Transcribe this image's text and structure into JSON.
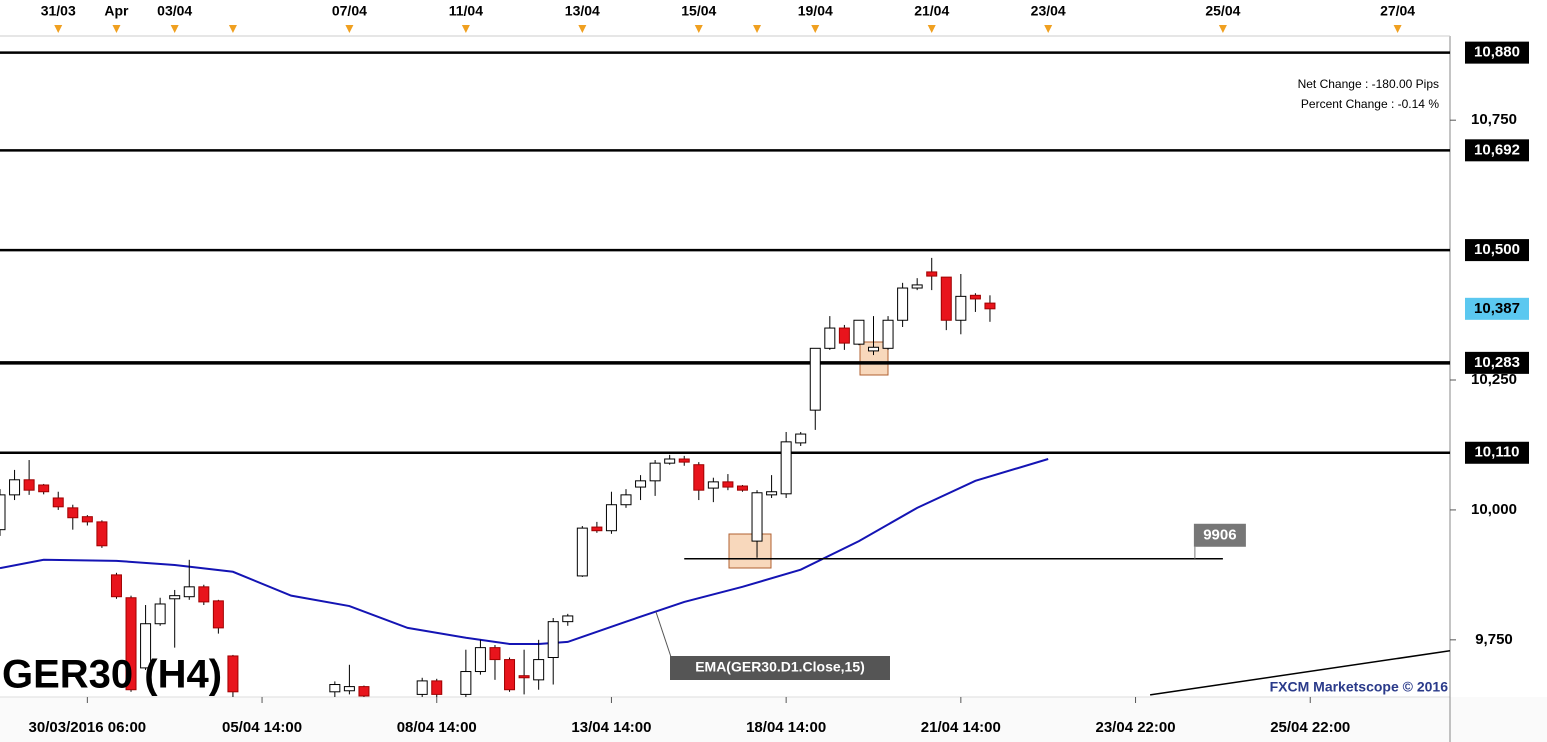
{
  "chart_data": {
    "type": "candlestick",
    "title": "GER30 (H4)",
    "annotations": {
      "net_change": "Net Change : -180.00 Pips",
      "percent_change": "Percent Change : -0.14 %",
      "ema_label": "EMA(GER30.D1.Close,15)",
      "watermark": "FXCM Marketscope © 2016"
    },
    "xlim": [
      0,
      99.6
    ],
    "ylim": [
      9640,
      10912
    ],
    "yticks": [
      {
        "value": 9750,
        "label": "9,750"
      },
      {
        "value": 10000,
        "label": "10,000"
      },
      {
        "value": 10250,
        "label": "10,250"
      },
      {
        "value": 10750,
        "label": "10,750"
      }
    ],
    "xticks": [
      {
        "value": 6,
        "label": "30/03/2016 06:00"
      },
      {
        "value": 18,
        "label": "05/04 14:00"
      },
      {
        "value": 30,
        "label": "08/04 14:00"
      },
      {
        "value": 42,
        "label": "13/04 14:00"
      },
      {
        "value": 54,
        "label": "18/04 14:00"
      },
      {
        "value": 66,
        "label": "21/04 14:00"
      },
      {
        "value": 78,
        "label": "23/04 22:00"
      },
      {
        "value": 90,
        "label": "25/04 22:00"
      }
    ],
    "top_ticks": [
      {
        "value": 4,
        "label": "31/03"
      },
      {
        "value": 8,
        "label": "Apr"
      },
      {
        "value": 12,
        "label": "03/04"
      },
      {
        "value": 16,
        "label": null
      },
      {
        "value": 24,
        "label": "07/04"
      },
      {
        "value": 32,
        "label": "11/04"
      },
      {
        "value": 40,
        "label": "13/04"
      },
      {
        "value": 48,
        "label": "15/04"
      },
      {
        "value": 52,
        "label": null
      },
      {
        "value": 56,
        "label": "19/04"
      },
      {
        "value": 64,
        "label": "21/04"
      },
      {
        "value": 72,
        "label": "23/04"
      },
      {
        "value": 84,
        "label": "25/04"
      },
      {
        "value": 96,
        "label": "27/04"
      }
    ],
    "levels": [
      {
        "value": 10880,
        "label": "10,880"
      },
      {
        "value": 10692,
        "label": "10,692"
      },
      {
        "value": 10500,
        "label": "10,500"
      },
      {
        "value": 10283,
        "label": "10,283"
      },
      {
        "value": 10110,
        "label": "10,110"
      }
    ],
    "last_price": {
      "value": 10387,
      "label": "10,387",
      "color": "#5bc8f0"
    },
    "up_color": "#ffffff",
    "down_color": "#e8141c",
    "candles": {
      "x": [
        0,
        1,
        2,
        3,
        4,
        5,
        6,
        7,
        8,
        9,
        10,
        11,
        12,
        13,
        14,
        15,
        16,
        23,
        24,
        25,
        29,
        30,
        32,
        33,
        34,
        35,
        36,
        37,
        38,
        39,
        40,
        41,
        42,
        43,
        44,
        45,
        46,
        47,
        48,
        49,
        50,
        51,
        52,
        53,
        54,
        55,
        56,
        57,
        58,
        59,
        60,
        61,
        62,
        63,
        64,
        65,
        66,
        67,
        68
      ],
      "open": [
        9962,
        10029,
        10058,
        10048,
        10023,
        10004,
        9987,
        9977,
        9875,
        9831,
        9696,
        9781,
        9829,
        9833,
        9852,
        9825,
        9719,
        9650,
        9652,
        9660,
        9645,
        9671,
        9645,
        9689,
        9735,
        9712,
        9681,
        9673,
        9716,
        9785,
        9873,
        9967,
        9960,
        10010,
        10044,
        10056,
        10090,
        10098,
        10087,
        10042,
        10054,
        10046,
        9940,
        10029,
        10031,
        10129,
        10192,
        10311,
        10350,
        10319,
        10306,
        10311,
        10365,
        10427,
        10458,
        10448,
        10365,
        10413,
        10398
      ],
      "high": [
        10040,
        10077,
        10096,
        10050,
        10035,
        10010,
        9990,
        9980,
        9879,
        9835,
        9817,
        9831,
        9846,
        9904,
        9856,
        9827,
        9721,
        9670,
        9702,
        9662,
        9677,
        9675,
        9731,
        9750,
        9740,
        9716,
        9731,
        9750,
        9792,
        9800,
        9969,
        9977,
        10035,
        10040,
        10067,
        10096,
        10106,
        10104,
        10092,
        10062,
        10069,
        10048,
        10038,
        10067,
        10150,
        10150,
        10311,
        10373,
        10356,
        10365,
        10373,
        10373,
        10437,
        10446,
        10485,
        10448,
        10454,
        10417,
        10413
      ],
      "low": [
        9950,
        10019,
        10029,
        10030,
        10000,
        9962,
        9970,
        9927,
        9829,
        9650,
        9692,
        9777,
        9735,
        9827,
        9817,
        9762,
        9640,
        9640,
        9645,
        9640,
        9640,
        9640,
        9640,
        9683,
        9673,
        9650,
        9645,
        9654,
        9664,
        9777,
        9871,
        9956,
        9954,
        10004,
        10019,
        10027,
        10087,
        10085,
        10019,
        10015,
        10038,
        10035,
        9908,
        10023,
        10023,
        10123,
        10154,
        10308,
        10308,
        10317,
        10298,
        10308,
        10352,
        10423,
        10423,
        10346,
        10338,
        10381,
        10362
      ],
      "close": [
        10029,
        10058,
        10038,
        10035,
        10006,
        9985,
        9977,
        9931,
        9833,
        9654,
        9781,
        9819,
        9835,
        9852,
        9823,
        9773,
        9650,
        9664,
        9660,
        9642,
        9671,
        9645,
        9689,
        9735,
        9712,
        9654,
        9677,
        9712,
        9785,
        9796,
        9965,
        9960,
        10010,
        10029,
        10056,
        10090,
        10098,
        10092,
        10038,
        10054,
        10044,
        10038,
        10033,
        10035,
        10131,
        10146,
        10311,
        10350,
        10321,
        10365,
        10313,
        10365,
        10427,
        10433,
        10450,
        10365,
        10411,
        10406,
        10387
      ]
    },
    "ema": {
      "name": "EMA(GER30.D1.Close,15)",
      "color": "#1414b4",
      "x": [
        0,
        3,
        8,
        12,
        16,
        20,
        24,
        28,
        32,
        35,
        37,
        39,
        43,
        47,
        51,
        55,
        59,
        63,
        67,
        72
      ],
      "values": [
        9888,
        9904,
        9902,
        9894,
        9881,
        9835,
        9815,
        9773,
        9754,
        9742,
        9742,
        9746,
        9785,
        9823,
        9852,
        9885,
        9940,
        10004,
        10056,
        10098
      ]
    },
    "support": {
      "value": 9906,
      "label": "9906",
      "x": [
        47,
        84
      ]
    },
    "trendline": {
      "x": [
        79,
        99.6
      ],
      "values": [
        9644,
        9729
      ]
    }
  }
}
